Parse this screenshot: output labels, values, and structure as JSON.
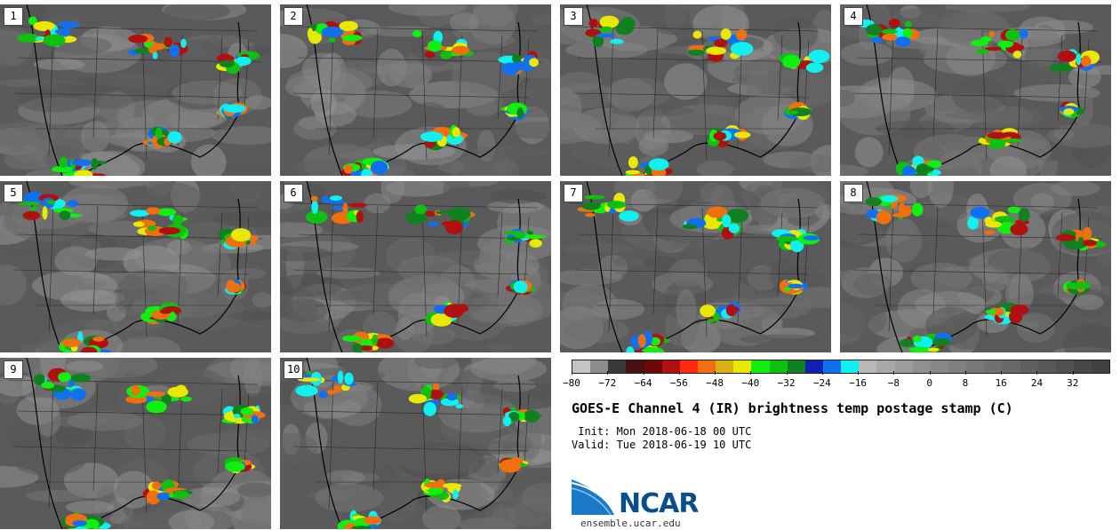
{
  "panels": [
    {
      "label": "1"
    },
    {
      "label": "2"
    },
    {
      "label": "3"
    },
    {
      "label": "4"
    },
    {
      "label": "5"
    },
    {
      "label": "6"
    },
    {
      "label": "7"
    },
    {
      "label": "8"
    },
    {
      "label": "9"
    },
    {
      "label": "10"
    }
  ],
  "colorbar": {
    "colors": [
      "#c4c4c4",
      "#8c8c8c",
      "#3a3a3a",
      "#4a1010",
      "#6e0808",
      "#b01010",
      "#ff2a10",
      "#f07010",
      "#d8b010",
      "#e8e800",
      "#10f010",
      "#10c010",
      "#108020",
      "#1020b0",
      "#1070f0",
      "#10f0f0",
      "#b8b8b8",
      "#a8a8a8",
      "#9c9c9c",
      "#909090",
      "#888888",
      "#808080",
      "#787878",
      "#707070",
      "#686868",
      "#606060",
      "#585858",
      "#505050",
      "#484848",
      "#404040"
    ],
    "tick_labels": [
      "−80",
      "−72",
      "−64",
      "−56",
      "−48",
      "−40",
      "−32",
      "−24",
      "−16",
      "−8",
      "0",
      "8",
      "16",
      "24",
      "32"
    ],
    "range": [
      -80,
      40
    ]
  },
  "title": "GOES-E Channel 4 (IR) brightness temp postage stamp (C)",
  "init": " Init: Mon 2018-06-18 00 UTC",
  "valid": "Valid: Tue 2018-06-19 10 UTC",
  "logo": {
    "text": "NCAR",
    "site": "ensemble.ucar.edu"
  }
}
